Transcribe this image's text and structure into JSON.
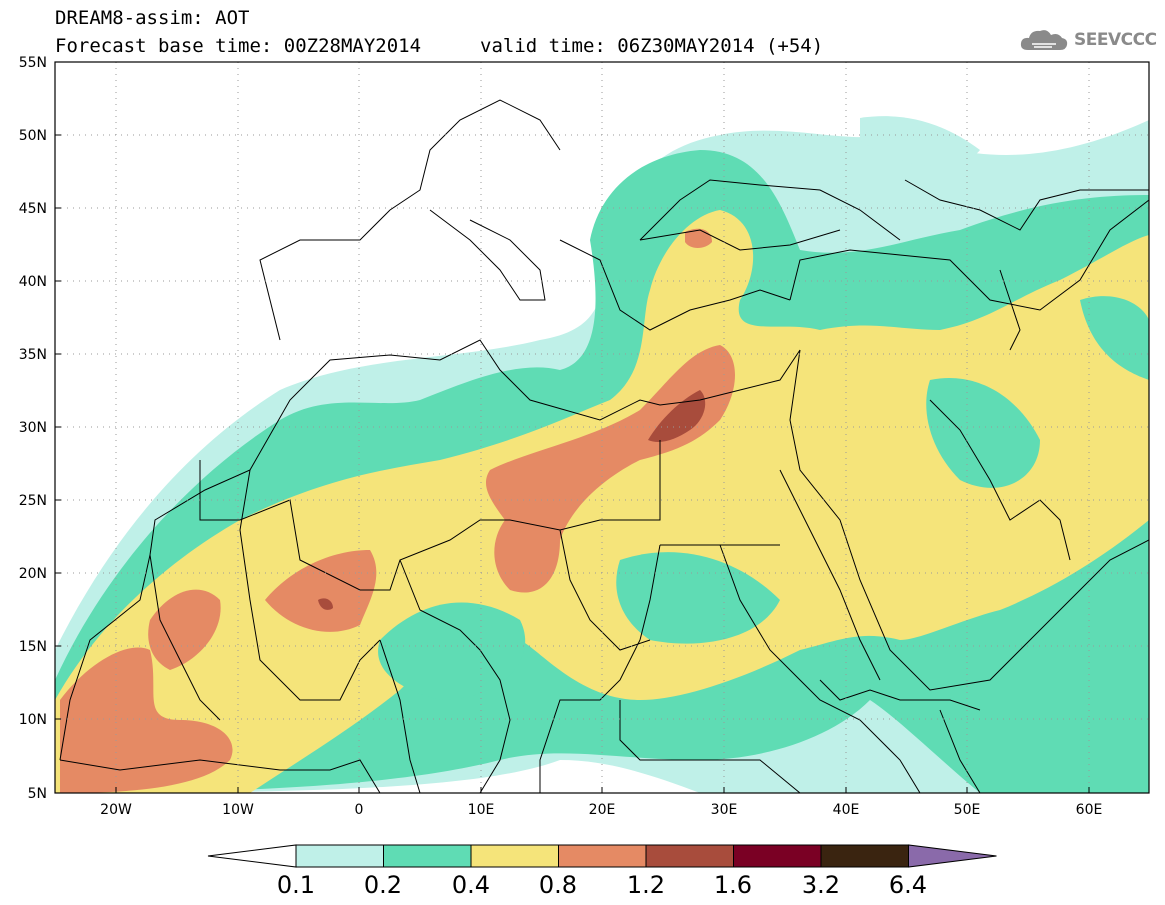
{
  "header": {
    "title": "DREAM8-assim: AOT",
    "base_time": "Forecast base time: 00Z28MAY2014",
    "valid_time": "valid time: 06Z30MAY2014 (+54)"
  },
  "logo": {
    "icon": "cloud-icon",
    "text": "SEEVCCC"
  },
  "map": {
    "lat_labels": [
      "55N",
      "50N",
      "45N",
      "40N",
      "35N",
      "30N",
      "25N",
      "20N",
      "15N",
      "10N",
      "5N"
    ],
    "lon_labels": [
      "20W",
      "10W",
      "0",
      "10E",
      "20E",
      "30E",
      "40E",
      "50E",
      "60E"
    ],
    "lon_range": [
      -25,
      65
    ],
    "lat_range": [
      5,
      55
    ],
    "grid": "dotted"
  },
  "colorbar": {
    "labels": [
      "0.1",
      "0.2",
      "0.4",
      "0.8",
      "1.2",
      "1.6",
      "3.2",
      "6.4"
    ],
    "colors": [
      "#ffffff",
      "#bff0e8",
      "#5fdcb4",
      "#f5e47a",
      "#e58a64",
      "#a84c3c",
      "#7a0024",
      "#3a2410",
      "#8a6aaa"
    ]
  },
  "palette": {
    "c01": "#bff0e8",
    "c02": "#5fdcb4",
    "c04": "#f5e47a",
    "c08": "#e58a64",
    "c12": "#a84c3c",
    "border": "#000000"
  }
}
